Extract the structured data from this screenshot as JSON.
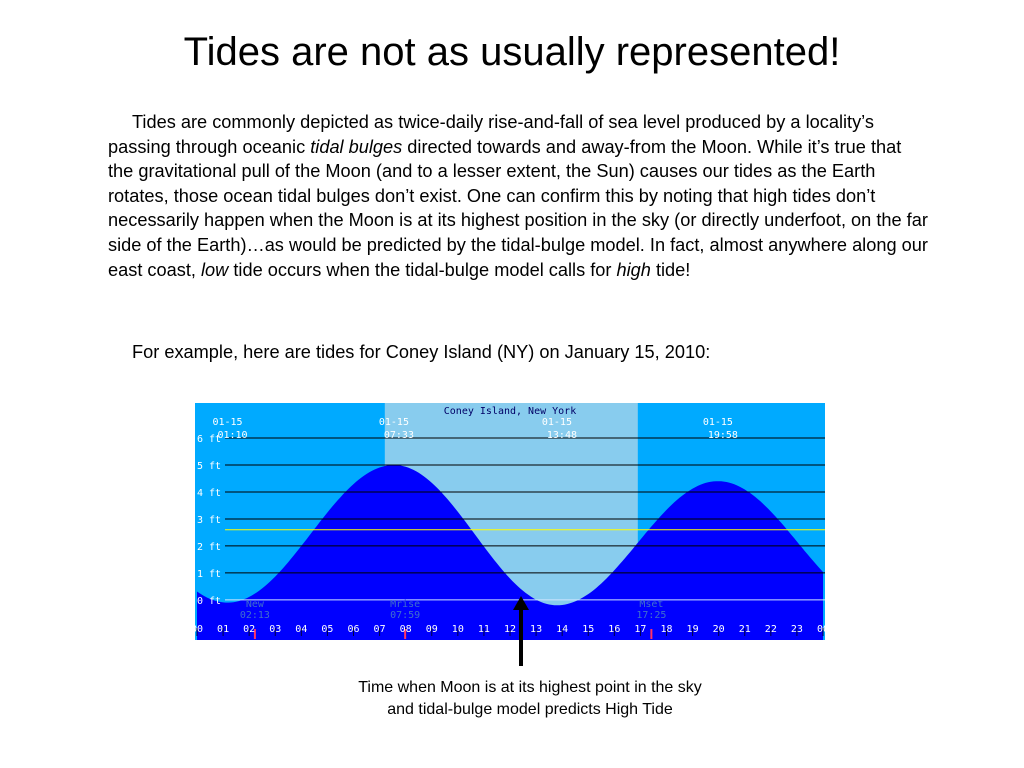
{
  "slide": {
    "title": "Tides are not as usually represented!",
    "paragraph": {
      "s1": "Tides are commonly depicted as twice-daily rise-and-fall of sea level produced by a locality’s passing through oceanic ",
      "s1_em": "tidal bulges",
      "s2": " directed towards and away-from the Moon.  While it’s true that the gravitational pull of the Moon (and to a lesser extent, the Sun) causes our tides as the Earth rotates, those ocean tidal bulges don’t exist.  One can confirm this by noting that high tides don’t necessarily happen when the Moon is at its highest position in the sky (or directly underfoot, on the far side of the Earth)…as would be predicted by the tidal-bulge model.  In fact, almost anywhere along our east coast, ",
      "s2_em": "low",
      "s3": " tide occurs when the tidal-bulge model calls for ",
      "s3_em": "high",
      "s4": " tide!"
    },
    "example": "For example, here are tides for Coney Island (NY) on January 15, 2010:",
    "caption_line1": "Time when Moon is at its highest point in the sky",
    "caption_line2": "and tidal-bulge model predicts High Tide"
  },
  "chart_data": {
    "type": "area",
    "title": "Coney Island, New York",
    "xlim": [
      0,
      24
    ],
    "ylim": [
      -0.3,
      7
    ],
    "y_ticks": [
      0,
      1,
      2,
      3,
      4,
      5,
      6
    ],
    "y_tick_labels": [
      "0 ft",
      "1 ft",
      "2 ft",
      "3 ft",
      "4 ft",
      "5 ft",
      "6 ft"
    ],
    "x_ticks": [
      0,
      1,
      2,
      3,
      4,
      5,
      6,
      7,
      8,
      9,
      10,
      11,
      12,
      13,
      14,
      15,
      16,
      17,
      18,
      19,
      20,
      21,
      22,
      23,
      24
    ],
    "x_tick_labels": [
      "00",
      "01",
      "02",
      "03",
      "04",
      "05",
      "06",
      "07",
      "08",
      "09",
      "10",
      "11",
      "12",
      "13",
      "14",
      "15",
      "16",
      "17",
      "18",
      "19",
      "20",
      "21",
      "22",
      "23",
      "00"
    ],
    "extremes": [
      {
        "date": "01-15",
        "time": "01:10",
        "hour": 1.17,
        "height": -0.1
      },
      {
        "date": "01-15",
        "time": "07:33",
        "hour": 7.55,
        "height": 5.0
      },
      {
        "date": "01-15",
        "time": "13:48",
        "hour": 13.8,
        "height": -0.2
      },
      {
        "date": "01-15",
        "time": "19:58",
        "hour": 19.97,
        "height": 4.4
      }
    ],
    "daylight": [
      7.2,
      16.9
    ],
    "reference_line": 2.6,
    "zero_line": 0,
    "events": [
      {
        "label": "New",
        "time": "02:13",
        "hour": 2.22
      },
      {
        "label": "Mrise",
        "time": "07:59",
        "hour": 7.98
      },
      {
        "label": "Mset",
        "time": "17:25",
        "hour": 17.42
      }
    ],
    "red_markers": [
      2.22,
      7.98,
      17.42
    ],
    "colors": {
      "night": "#00aaff",
      "day": "#88ccee",
      "water": "#0000ff",
      "grid": "#000000",
      "labels": "#ffffff",
      "title": "#000066",
      "reference": "#ffff00"
    }
  }
}
